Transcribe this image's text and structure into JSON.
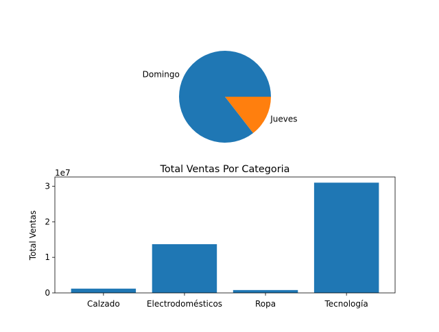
{
  "chart_data": [
    {
      "type": "pie",
      "labels": [
        "Domingo",
        "Jueves"
      ],
      "values": [
        85.5,
        14.5
      ],
      "colors": [
        "#1f77b4",
        "#ff7f0e"
      ]
    },
    {
      "type": "bar",
      "title": "Total Ventas Por Categoria",
      "xlabel": "",
      "ylabel": "Total Ventas",
      "scale_label": "1e7",
      "categories": [
        "Calzado",
        "Electrodomésticos",
        "Ropa",
        "Tecnología"
      ],
      "values": [
        1200000,
        13700000,
        800000,
        31000000
      ],
      "ylim": [
        0,
        32600000
      ],
      "yticks": [
        0,
        10000000,
        20000000,
        30000000
      ],
      "ytick_labels": [
        "0",
        "1",
        "2",
        "3"
      ],
      "bar_color": "#1f77b4",
      "grid": false
    }
  ]
}
